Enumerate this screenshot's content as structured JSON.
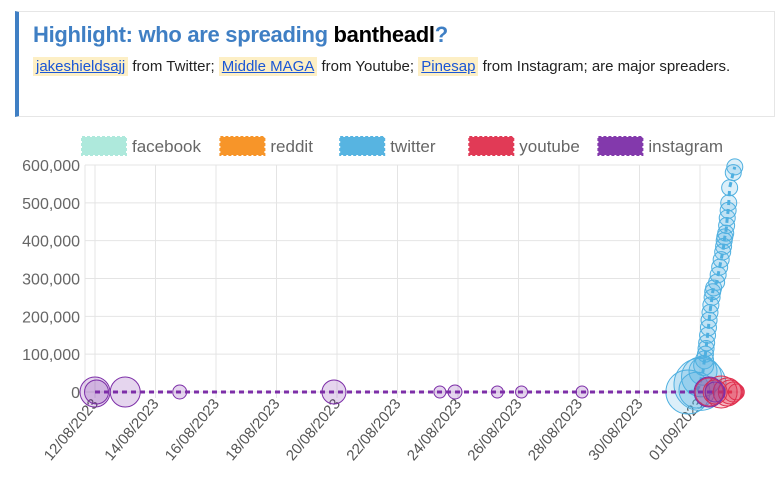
{
  "highlight": {
    "title_prefix": "Highlight: who are spreading ",
    "keyword": "bantheadl",
    "title_suffix": "?",
    "spreaders": [
      {
        "name": "jakeshieldsajj",
        "text": " from Twitter; "
      },
      {
        "name": "Middle MAGA",
        "text": " from Youtube; "
      },
      {
        "name": "Pinesap",
        "text": " from Instagram; are major spreaders."
      }
    ]
  },
  "chart_data": {
    "type": "scatter",
    "legend": [
      {
        "name": "facebook",
        "color": "#aee9dc"
      },
      {
        "name": "reddit",
        "color": "#f7901e"
      },
      {
        "name": "twitter",
        "color": "#4fb0e0"
      },
      {
        "name": "youtube",
        "color": "#e0304e"
      },
      {
        "name": "instagram",
        "color": "#7d2fa8"
      }
    ],
    "legend_position": "top",
    "ylim": [
      0,
      600000
    ],
    "yticks": [
      "0",
      "100,000",
      "200,000",
      "300,000",
      "400,000",
      "500,000",
      "600,000"
    ],
    "xticks": [
      "12/08/2023",
      "14/08/2023",
      "16/08/2023",
      "18/08/2023",
      "20/08/2023",
      "22/08/2023",
      "24/08/2023",
      "26/08/2023",
      "28/08/2023",
      "30/08/2023",
      "01/09/2023"
    ],
    "x_unit": "days since 12/08/2023",
    "series": [
      {
        "name": "twitter",
        "points": [
          [
            19.6,
            0,
            22
          ],
          [
            19.9,
            5000,
            18
          ],
          [
            20.0,
            20000,
            26
          ],
          [
            20.05,
            40000,
            20
          ],
          [
            20.1,
            55000,
            14
          ],
          [
            20.12,
            70000,
            10
          ],
          [
            20.15,
            85000,
            9
          ],
          [
            20.18,
            100000,
            8
          ],
          [
            20.2,
            115000,
            8
          ],
          [
            20.22,
            130000,
            8
          ],
          [
            20.25,
            150000,
            8
          ],
          [
            20.28,
            170000,
            8
          ],
          [
            20.3,
            190000,
            8
          ],
          [
            20.33,
            210000,
            8
          ],
          [
            20.36,
            230000,
            8
          ],
          [
            20.4,
            250000,
            8
          ],
          [
            20.42,
            265000,
            8
          ],
          [
            20.45,
            275000,
            8
          ],
          [
            20.55,
            290000,
            8
          ],
          [
            20.6,
            310000,
            8
          ],
          [
            20.65,
            330000,
            8
          ],
          [
            20.7,
            350000,
            8
          ],
          [
            20.75,
            370000,
            8
          ],
          [
            20.78,
            385000,
            8
          ],
          [
            20.8,
            400000,
            8
          ],
          [
            20.82,
            410000,
            8
          ],
          [
            20.85,
            420000,
            8
          ],
          [
            20.88,
            440000,
            8
          ],
          [
            20.9,
            460000,
            8
          ],
          [
            20.93,
            480000,
            8
          ],
          [
            20.95,
            500000,
            8
          ],
          [
            20.98,
            540000,
            8
          ],
          [
            21.1,
            580000,
            8
          ],
          [
            21.15,
            595000,
            8
          ]
        ]
      },
      {
        "name": "youtube",
        "points": [
          [
            20.3,
            0,
            14
          ],
          [
            20.5,
            0,
            12
          ],
          [
            20.7,
            0,
            16
          ],
          [
            20.9,
            0,
            14
          ],
          [
            21.0,
            0,
            12
          ],
          [
            21.1,
            0,
            10
          ],
          [
            21.2,
            0,
            8
          ]
        ]
      },
      {
        "name": "instagram",
        "points": [
          [
            0,
            0,
            15
          ],
          [
            0.05,
            0,
            12
          ],
          [
            1.0,
            0,
            15
          ],
          [
            2.8,
            0,
            7
          ],
          [
            7.9,
            0,
            12
          ],
          [
            11.4,
            0,
            6
          ],
          [
            11.9,
            0,
            7
          ],
          [
            13.3,
            0,
            6
          ],
          [
            14.1,
            0,
            6
          ],
          [
            16.1,
            0,
            6
          ],
          [
            20.3,
            0,
            15
          ],
          [
            20.5,
            0,
            10
          ]
        ]
      }
    ]
  }
}
